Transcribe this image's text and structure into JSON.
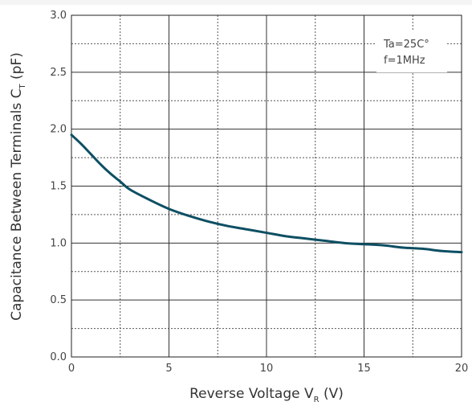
{
  "chart_data": {
    "type": "line",
    "xlabel": {
      "main": "Reverse Voltage V",
      "sub": "R",
      "suffix": " (V)"
    },
    "ylabel": {
      "main": "Capacitance Between Terminals C",
      "sub": "T",
      "suffix": " (pF)"
    },
    "xlim": [
      0,
      20
    ],
    "ylim": [
      0,
      3.0
    ],
    "x_ticks": [
      0,
      5,
      10,
      15,
      20
    ],
    "x_tick_labels": [
      "0",
      "5",
      "10",
      "15",
      "20"
    ],
    "y_ticks": [
      0,
      0.5,
      1.0,
      1.5,
      2.0,
      2.5,
      3.0
    ],
    "y_tick_labels": [
      "0.0",
      "0.5",
      "1.0",
      "1.5",
      "2.0",
      "2.5",
      "3.0"
    ],
    "grid": true,
    "legend": null,
    "annotations": [
      "Ta=25C°",
      "f=1MHz"
    ],
    "annotation_placement": "top-right",
    "series": [
      {
        "color": "#0d4f63",
        "x": [
          0,
          0.5,
          1,
          1.5,
          2,
          2.5,
          3,
          4,
          5,
          6,
          7,
          8,
          9,
          10,
          11,
          12,
          13,
          14,
          15,
          16,
          17,
          18,
          19,
          20
        ],
        "y": [
          1.95,
          1.87,
          1.78,
          1.69,
          1.61,
          1.54,
          1.47,
          1.38,
          1.3,
          1.24,
          1.19,
          1.15,
          1.12,
          1.09,
          1.06,
          1.04,
          1.02,
          1.0,
          0.99,
          0.98,
          0.96,
          0.95,
          0.93,
          0.92
        ]
      }
    ]
  }
}
